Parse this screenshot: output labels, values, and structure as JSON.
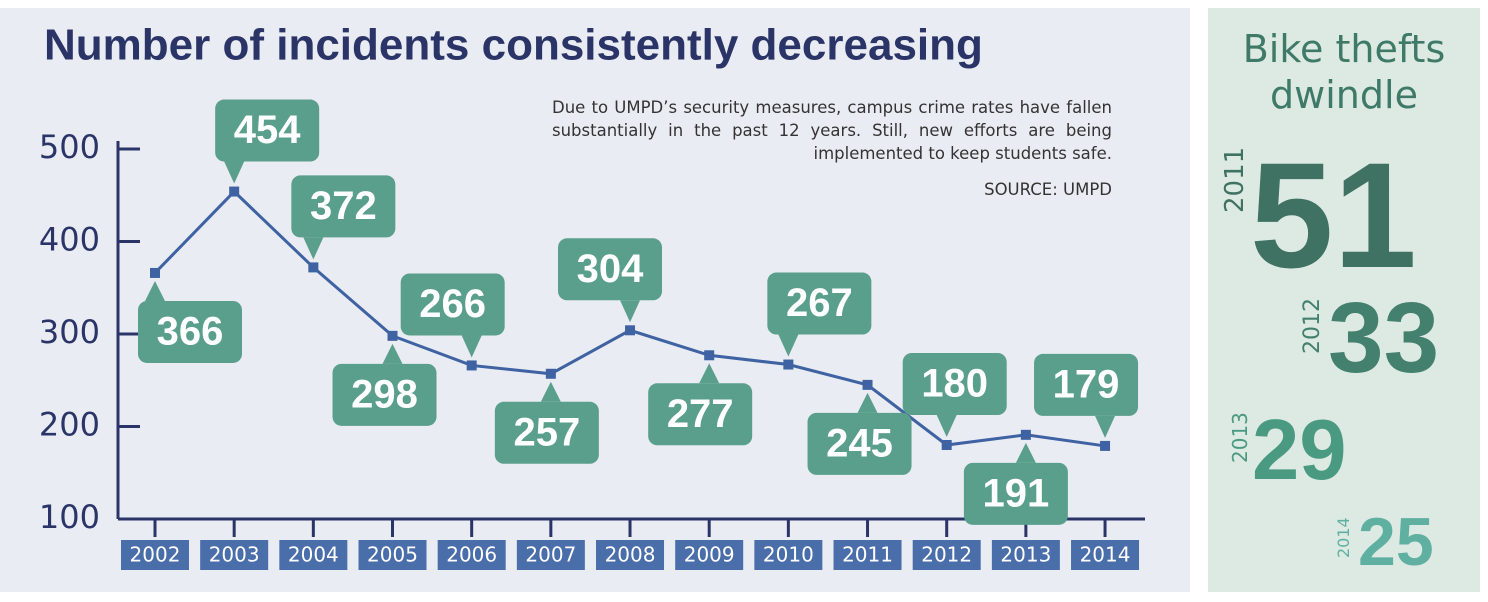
{
  "chart_data": {
    "type": "line",
    "title": "Number of incidents consistently decreasing",
    "note": "Due to UMPD’s security measures, campus crime rates have fallen substantially in the past 12 years. Still, new efforts are being implemented to keep students safe.",
    "source": "SOURCE: UMPD",
    "categories": [
      "2002",
      "2003",
      "2004",
      "2005",
      "2006",
      "2007",
      "2008",
      "2009",
      "2010",
      "2011",
      "2012",
      "2013",
      "2014"
    ],
    "values": [
      366,
      454,
      372,
      298,
      266,
      257,
      304,
      277,
      267,
      245,
      180,
      191,
      179
    ],
    "color": "#3f62a3",
    "label_color": "#5a9e8c",
    "ylim": [
      100,
      500
    ],
    "yticks": [
      100,
      200,
      300,
      400,
      500
    ]
  },
  "sidebar": {
    "title": "Bike thefts dwindle",
    "items": [
      {
        "year": "2011",
        "value": 51
      },
      {
        "year": "2012",
        "value": 33
      },
      {
        "year": "2013",
        "value": 29
      },
      {
        "year": "2014",
        "value": 25
      }
    ]
  }
}
